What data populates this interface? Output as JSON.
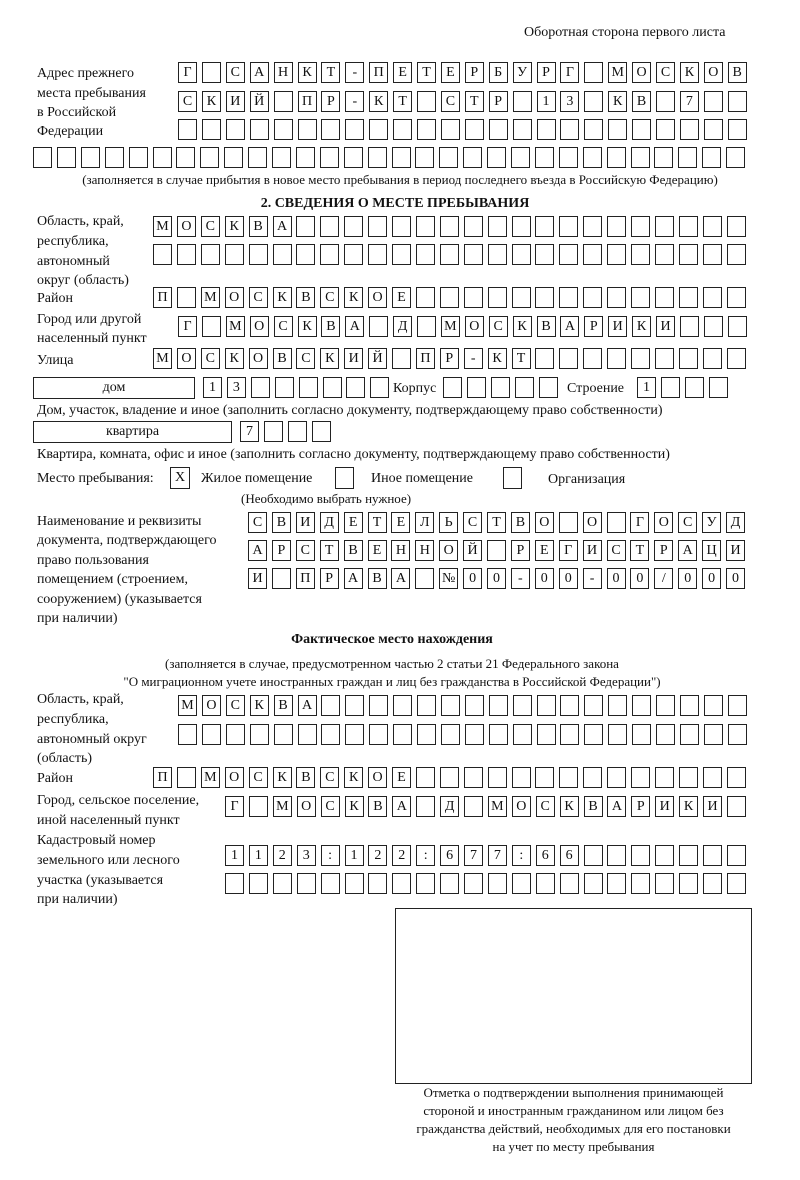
{
  "header": "Оборотная сторона первого листа",
  "prev_address": {
    "label": [
      "Адрес прежнего",
      "места пребывания",
      "в Российской",
      "Федерации"
    ],
    "rows": [
      [
        "Г",
        "",
        "С",
        "А",
        "Н",
        "К",
        "Т",
        "-",
        "П",
        "Е",
        "Т",
        "Е",
        "Р",
        "Б",
        "У",
        "Р",
        "Г",
        "",
        "М",
        "О",
        "С",
        "К",
        "О",
        "В"
      ],
      [
        "С",
        "К",
        "И",
        "Й",
        "",
        "П",
        "Р",
        "-",
        "К",
        "Т",
        "",
        "С",
        "Т",
        "Р",
        "",
        "1",
        "3",
        "",
        "К",
        "В",
        "",
        "7",
        "",
        ""
      ],
      [
        "",
        "",
        "",
        "",
        "",
        "",
        "",
        "",
        "",
        "",
        "",
        "",
        "",
        "",
        "",
        "",
        "",
        "",
        "",
        "",
        "",
        "",
        "",
        ""
      ],
      [
        "",
        "",
        "",
        "",
        "",
        "",
        "",
        "",
        "",
        "",
        "",
        "",
        "",
        "",
        "",
        "",
        "",
        "",
        "",
        "",
        "",
        "",
        "",
        "",
        "",
        "",
        "",
        "",
        "",
        ""
      ]
    ],
    "note": "(заполняется в случае прибытия в новое место пребывания в период последнего въезда в Российскую Федерацию)"
  },
  "section2": {
    "title": "2. СВЕДЕНИЯ О МЕСТЕ ПРЕБЫВАНИЯ",
    "region_label": [
      "Область, край,",
      "республика,",
      "автономный",
      "округ (область)"
    ],
    "region_rows": [
      [
        "М",
        "О",
        "С",
        "К",
        "В",
        "А",
        "",
        "",
        "",
        "",
        "",
        "",
        "",
        "",
        "",
        "",
        "",
        "",
        "",
        "",
        "",
        "",
        "",
        "",
        ""
      ],
      [
        "",
        "",
        "",
        "",
        "",
        "",
        "",
        "",
        "",
        "",
        "",
        "",
        "",
        "",
        "",
        "",
        "",
        "",
        "",
        "",
        "",
        "",
        "",
        "",
        ""
      ]
    ],
    "district_label": "Район",
    "district": [
      "П",
      "",
      "М",
      "О",
      "С",
      "К",
      "В",
      "С",
      "К",
      "О",
      "Е",
      "",
      "",
      "",
      "",
      "",
      "",
      "",
      "",
      "",
      "",
      "",
      "",
      "",
      ""
    ],
    "city_label": [
      "Город или другой",
      "населенный пункт"
    ],
    "city": [
      "Г",
      "",
      "М",
      "О",
      "С",
      "К",
      "В",
      "А",
      "",
      "Д",
      "",
      "М",
      "О",
      "С",
      "К",
      "В",
      "А",
      "Р",
      "И",
      "К",
      "И",
      "",
      "",
      ""
    ],
    "street_label": "Улица",
    "street": [
      "М",
      "О",
      "С",
      "К",
      "О",
      "В",
      "С",
      "К",
      "И",
      "Й",
      "",
      "П",
      "Р",
      "-",
      "К",
      "Т",
      "",
      "",
      "",
      "",
      "",
      "",
      "",
      "",
      ""
    ],
    "house_type": "дом",
    "house": [
      "1",
      "3",
      "",
      "",
      "",
      "",
      "",
      ""
    ],
    "korpus_label": "Корпус",
    "korpus": [
      "",
      "",
      "",
      "",
      ""
    ],
    "stroenie_label": "Строение",
    "stroenie": [
      "1",
      "",
      "",
      ""
    ],
    "house_note": "Дом, участок, владение и иное (заполнить согласно документу, подтверждающему право собственности)",
    "flat_type": "квартира",
    "flat": [
      "7",
      "",
      "",
      ""
    ],
    "flat_note": "Квартира, комната, офис и иное (заполнить согласно документу, подтверждающему право собственности)",
    "stay_label": "Место пребывания:",
    "stay_options": [
      {
        "label": "Жилое помещение",
        "mark": "X"
      },
      {
        "label": "Иное помещение",
        "mark": ""
      },
      {
        "label": "Организация",
        "mark": ""
      }
    ],
    "stay_note": "(Необходимо выбрать нужное)",
    "doc_label": [
      "Наименование и реквизиты",
      "документа, подтверждающего",
      "право пользования",
      "помещением (строением,",
      "сооружением) (указывается",
      "при наличии)"
    ],
    "doc_rows": [
      [
        "С",
        "В",
        "И",
        "Д",
        "Е",
        "Т",
        "Е",
        "Л",
        "Ь",
        "С",
        "Т",
        "В",
        "О",
        "",
        "О",
        "",
        "Г",
        "О",
        "С",
        "У",
        "Д"
      ],
      [
        "А",
        "Р",
        "С",
        "Т",
        "В",
        "Е",
        "Н",
        "Н",
        "О",
        "Й",
        "",
        "Р",
        "Е",
        "Г",
        "И",
        "С",
        "Т",
        "Р",
        "А",
        "Ц",
        "И"
      ],
      [
        "И",
        "",
        "П",
        "Р",
        "А",
        "В",
        "А",
        "",
        "№",
        "0",
        "0",
        "-",
        "0",
        "0",
        "-",
        "0",
        "0",
        "/",
        "0",
        "0",
        "0"
      ]
    ]
  },
  "actual": {
    "title": "Фактическое место нахождения",
    "note1": "(заполняется в случае, предусмотренном частью 2 статьи 21 Федерального закона",
    "note2": "\"О миграционном учете иностранных граждан и лиц без гражданства в Российской Федерации\")",
    "region_label": [
      "Область, край,",
      "республика,",
      "автономный округ",
      "(область)"
    ],
    "region_rows": [
      [
        "М",
        "О",
        "С",
        "К",
        "В",
        "А",
        "",
        "",
        "",
        "",
        "",
        "",
        "",
        "",
        "",
        "",
        "",
        "",
        "",
        "",
        "",
        "",
        "",
        ""
      ],
      [
        "",
        "",
        "",
        "",
        "",
        "",
        "",
        "",
        "",
        "",
        "",
        "",
        "",
        "",
        "",
        "",
        "",
        "",
        "",
        "",
        "",
        "",
        "",
        ""
      ]
    ],
    "district_label": "Район",
    "district": [
      "П",
      "",
      "М",
      "О",
      "С",
      "К",
      "В",
      "С",
      "К",
      "О",
      "Е",
      "",
      "",
      "",
      "",
      "",
      "",
      "",
      "",
      "",
      "",
      "",
      "",
      "",
      ""
    ],
    "city_label": [
      "Город, сельское поселение,",
      "иной населенный пункт"
    ],
    "city": [
      "Г",
      "",
      "М",
      "О",
      "С",
      "К",
      "В",
      "А",
      "",
      "Д",
      "",
      "М",
      "О",
      "С",
      "К",
      "В",
      "А",
      "Р",
      "И",
      "К",
      "И",
      ""
    ],
    "cadastre_label": [
      "Кадастровый номер",
      "земельного или лесного",
      "участка (указывается",
      "при наличии)"
    ],
    "cadastre_rows": [
      [
        "1",
        "1",
        "2",
        "3",
        ":",
        "1",
        "2",
        "2",
        ":",
        "6",
        "7",
        "7",
        ":",
        "6",
        "6",
        "",
        "",
        "",
        "",
        "",
        "",
        ""
      ],
      [
        "",
        "",
        "",
        "",
        "",
        "",
        "",
        "",
        "",
        "",
        "",
        "",
        "",
        "",
        "",
        "",
        "",
        "",
        "",
        "",
        "",
        ""
      ]
    ]
  },
  "confirmation_caption": [
    "Отметка о подтверждении выполнения принимающей",
    "стороной и иностранным гражданином или лицом без",
    "гражданства действий, необходимых для его постановки",
    "на учет по месту пребывания"
  ]
}
